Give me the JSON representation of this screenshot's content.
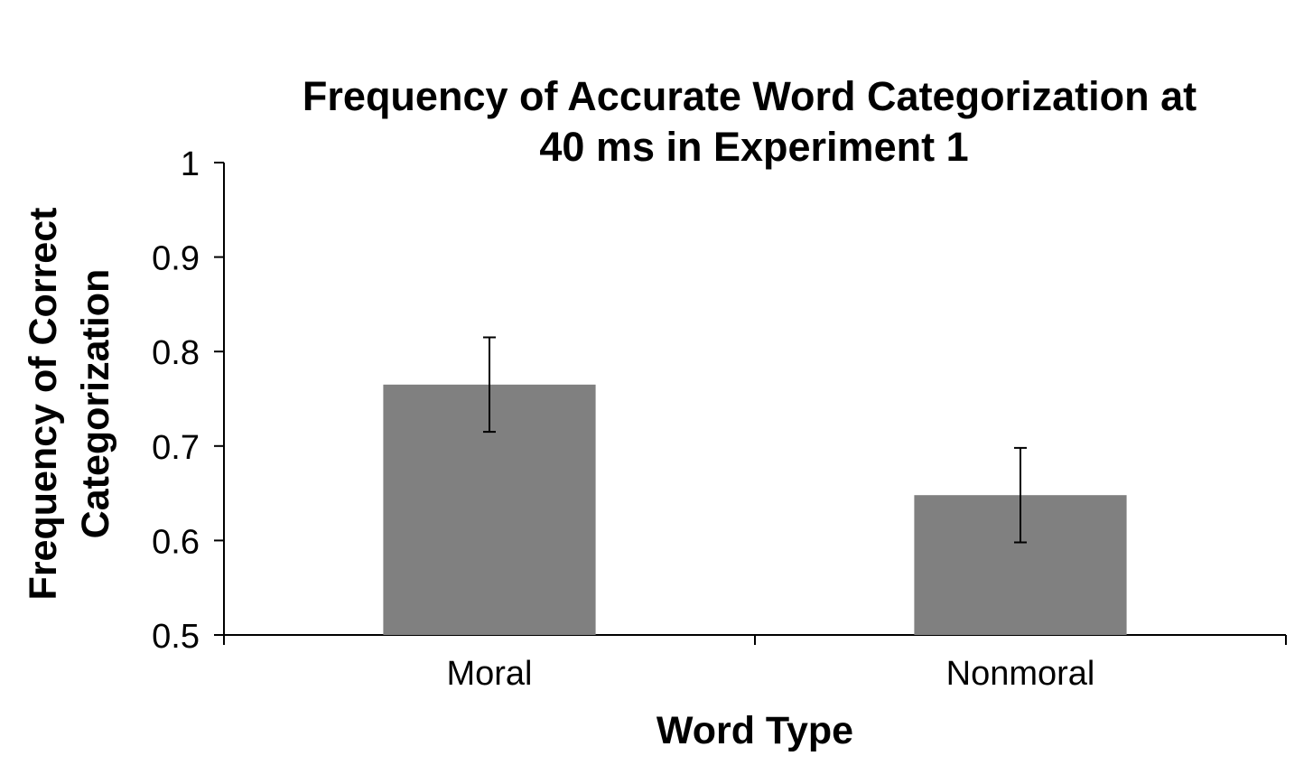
{
  "chart_data": {
    "type": "bar",
    "title_lines": [
      "Frequency of Accurate Word Categorization at",
      "40 ms in Experiment 1"
    ],
    "xlabel": "Word Type",
    "ylabel_lines": [
      "Frequency of Correct",
      "Categorization"
    ],
    "categories": [
      "Moral",
      "Nonmoral"
    ],
    "series": [
      {
        "values": [
          0.765,
          0.648
        ],
        "error_low": [
          0.715,
          0.598
        ],
        "error_high": [
          0.815,
          0.698
        ],
        "color": "#808080"
      }
    ],
    "ylim": [
      0.5,
      1.0
    ],
    "yticks": [
      0.5,
      0.6,
      0.7,
      0.8,
      0.9,
      1.0
    ],
    "ytick_labels": [
      "0.5",
      "0.6",
      "0.7",
      "0.8",
      "0.9",
      "1"
    ],
    "grid": false,
    "legend": "none"
  }
}
